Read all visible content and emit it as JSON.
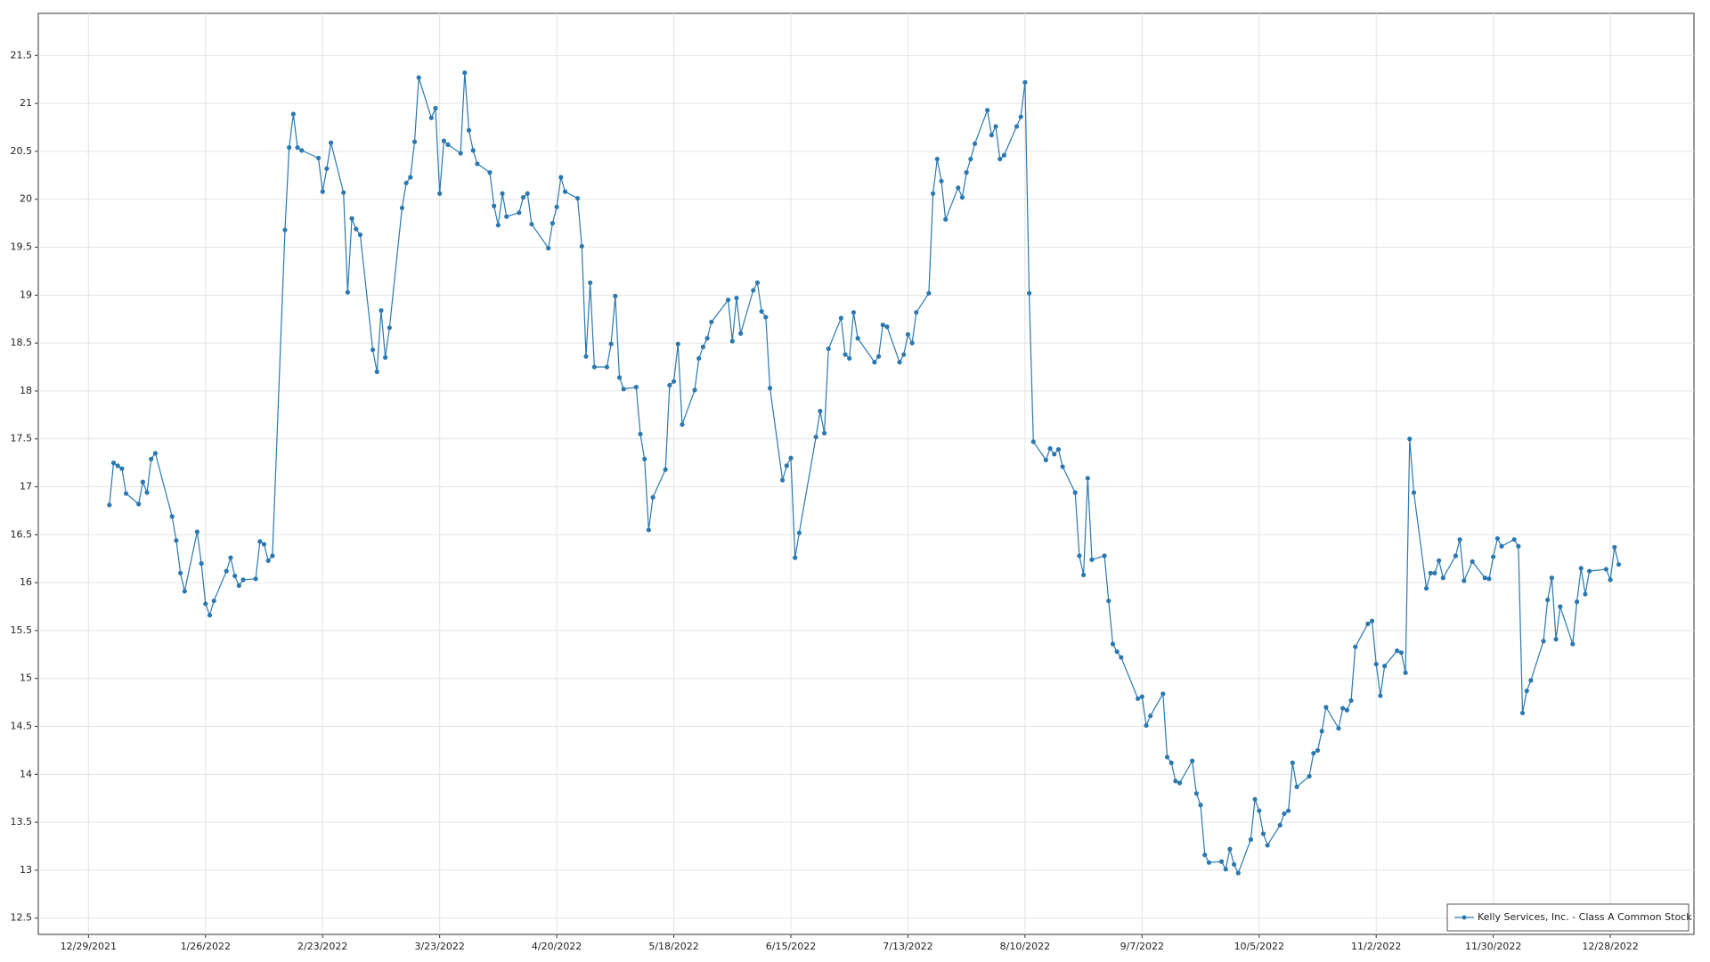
{
  "chart_data": {
    "type": "line",
    "grid": true,
    "legend": "lower right",
    "xlim": [
      "12/17/2021",
      "1/17/2023"
    ],
    "ylim": [
      12.33,
      21.94
    ],
    "xticks": [
      "12/29/2021",
      "1/26/2022",
      "2/23/2022",
      "3/23/2022",
      "4/20/2022",
      "5/18/2022",
      "6/15/2022",
      "7/13/2022",
      "8/10/2022",
      "9/7/2022",
      "10/5/2022",
      "11/2/2022",
      "11/30/2022",
      "12/28/2022"
    ],
    "yticks": [
      12.5,
      13,
      13.5,
      14,
      14.5,
      15,
      15.5,
      16,
      16.5,
      17,
      17.5,
      18,
      18.5,
      19,
      19.5,
      20,
      20.5,
      21,
      21.5
    ],
    "x": [
      "1/3/2022",
      "1/4/2022",
      "1/5/2022",
      "1/6/2022",
      "1/7/2022",
      "1/10/2022",
      "1/11/2022",
      "1/12/2022",
      "1/13/2022",
      "1/14/2022",
      "1/18/2022",
      "1/19/2022",
      "1/20/2022",
      "1/21/2022",
      "1/24/2022",
      "1/25/2022",
      "1/26/2022",
      "1/27/2022",
      "1/28/2022",
      "1/31/2022",
      "2/1/2022",
      "2/2/2022",
      "2/3/2022",
      "2/4/2022",
      "2/7/2022",
      "2/8/2022",
      "2/9/2022",
      "2/10/2022",
      "2/11/2022",
      "2/14/2022",
      "2/15/2022",
      "2/16/2022",
      "2/17/2022",
      "2/18/2022",
      "2/22/2022",
      "2/23/2022",
      "2/24/2022",
      "2/25/2022",
      "2/28/2022",
      "3/1/2022",
      "3/2/2022",
      "3/3/2022",
      "3/4/2022",
      "3/7/2022",
      "3/8/2022",
      "3/9/2022",
      "3/10/2022",
      "3/11/2022",
      "3/14/2022",
      "3/15/2022",
      "3/16/2022",
      "3/17/2022",
      "3/18/2022",
      "3/21/2022",
      "3/22/2022",
      "3/23/2022",
      "3/24/2022",
      "3/25/2022",
      "3/28/2022",
      "3/29/2022",
      "3/30/2022",
      "3/31/2022",
      "4/1/2022",
      "4/4/2022",
      "4/5/2022",
      "4/6/2022",
      "4/7/2022",
      "4/8/2022",
      "4/11/2022",
      "4/12/2022",
      "4/13/2022",
      "4/14/2022",
      "4/18/2022",
      "4/19/2022",
      "4/20/2022",
      "4/21/2022",
      "4/22/2022",
      "4/25/2022",
      "4/26/2022",
      "4/27/2022",
      "4/28/2022",
      "4/29/2022",
      "5/2/2022",
      "5/3/2022",
      "5/4/2022",
      "5/5/2022",
      "5/6/2022",
      "5/9/2022",
      "5/10/2022",
      "5/11/2022",
      "5/12/2022",
      "5/13/2022",
      "5/16/2022",
      "5/17/2022",
      "5/18/2022",
      "5/19/2022",
      "5/20/2022",
      "5/23/2022",
      "5/24/2022",
      "5/25/2022",
      "5/26/2022",
      "5/27/2022",
      "5/31/2022",
      "6/1/2022",
      "6/2/2022",
      "6/3/2022",
      "6/6/2022",
      "6/7/2022",
      "6/8/2022",
      "6/9/2022",
      "6/10/2022",
      "6/13/2022",
      "6/14/2022",
      "6/15/2022",
      "6/16/2022",
      "6/17/2022",
      "6/21/2022",
      "6/22/2022",
      "6/23/2022",
      "6/24/2022",
      "6/27/2022",
      "6/28/2022",
      "6/29/2022",
      "6/30/2022",
      "7/1/2022",
      "7/5/2022",
      "7/6/2022",
      "7/7/2022",
      "7/8/2022",
      "7/11/2022",
      "7/12/2022",
      "7/13/2022",
      "7/14/2022",
      "7/15/2022",
      "7/18/2022",
      "7/19/2022",
      "7/20/2022",
      "7/21/2022",
      "7/22/2022",
      "7/25/2022",
      "7/26/2022",
      "7/27/2022",
      "7/28/2022",
      "7/29/2022",
      "8/1/2022",
      "8/2/2022",
      "8/3/2022",
      "8/4/2022",
      "8/5/2022",
      "8/8/2022",
      "8/9/2022",
      "8/10/2022",
      "8/11/2022",
      "8/12/2022",
      "8/15/2022",
      "8/16/2022",
      "8/17/2022",
      "8/18/2022",
      "8/19/2022",
      "8/22/2022",
      "8/23/2022",
      "8/24/2022",
      "8/25/2022",
      "8/26/2022",
      "8/29/2022",
      "8/30/2022",
      "8/31/2022",
      "9/1/2022",
      "9/2/2022",
      "9/6/2022",
      "9/7/2022",
      "9/8/2022",
      "9/9/2022",
      "9/12/2022",
      "9/13/2022",
      "9/14/2022",
      "9/15/2022",
      "9/16/2022",
      "9/19/2022",
      "9/20/2022",
      "9/21/2022",
      "9/22/2022",
      "9/23/2022",
      "9/26/2022",
      "9/27/2022",
      "9/28/2022",
      "9/29/2022",
      "9/30/2022",
      "10/3/2022",
      "10/4/2022",
      "10/5/2022",
      "10/6/2022",
      "10/7/2022",
      "10/10/2022",
      "10/11/2022",
      "10/12/2022",
      "10/13/2022",
      "10/14/2022",
      "10/17/2022",
      "10/18/2022",
      "10/19/2022",
      "10/20/2022",
      "10/21/2022",
      "10/24/2022",
      "10/25/2022",
      "10/26/2022",
      "10/27/2022",
      "10/28/2022",
      "10/31/2022",
      "11/1/2022",
      "11/2/2022",
      "11/3/2022",
      "11/4/2022",
      "11/7/2022",
      "11/8/2022",
      "11/9/2022",
      "11/10/2022",
      "11/11/2022",
      "11/14/2022",
      "11/15/2022",
      "11/16/2022",
      "11/17/2022",
      "11/18/2022",
      "11/21/2022",
      "11/22/2022",
      "11/23/2022",
      "11/25/2022",
      "11/28/2022",
      "11/29/2022",
      "11/30/2022",
      "12/1/2022",
      "12/2/2022",
      "12/5/2022",
      "12/6/2022",
      "12/7/2022",
      "12/8/2022",
      "12/9/2022",
      "12/12/2022",
      "12/13/2022",
      "12/14/2022",
      "12/15/2022",
      "12/16/2022",
      "12/19/2022",
      "12/20/2022",
      "12/21/2022",
      "12/22/2022",
      "12/23/2022",
      "12/27/2022",
      "12/28/2022",
      "12/29/2022",
      "12/30/2022"
    ],
    "series": [
      {
        "name": "Kelly Services, Inc. - Class A Common Stock",
        "color": "#2b78b0",
        "values": [
          16.81,
          17.25,
          17.22,
          17.19,
          16.93,
          16.82,
          17.05,
          16.94,
          17.29,
          17.35,
          16.69,
          16.44,
          16.1,
          15.91,
          16.53,
          16.2,
          15.78,
          15.66,
          15.81,
          16.12,
          16.26,
          16.07,
          15.97,
          16.03,
          16.04,
          16.43,
          16.4,
          16.23,
          16.28,
          19.68,
          20.54,
          20.89,
          20.54,
          20.51,
          20.43,
          20.08,
          20.32,
          20.59,
          20.07,
          19.03,
          19.8,
          19.69,
          19.63,
          18.43,
          18.2,
          18.84,
          18.35,
          18.66,
          19.91,
          20.17,
          20.23,
          20.6,
          21.27,
          20.85,
          20.95,
          20.06,
          20.61,
          20.57,
          20.48,
          21.32,
          20.72,
          20.51,
          20.37,
          20.28,
          19.93,
          19.73,
          20.06,
          19.82,
          19.86,
          20.02,
          20.06,
          19.74,
          19.49,
          19.75,
          19.92,
          20.23,
          20.08,
          20.01,
          19.51,
          18.36,
          19.13,
          18.25,
          18.25,
          18.49,
          18.99,
          18.14,
          18.02,
          18.04,
          17.55,
          17.29,
          16.55,
          16.89,
          17.18,
          18.06,
          18.1,
          18.49,
          17.65,
          18.01,
          18.34,
          18.46,
          18.55,
          18.72,
          18.95,
          18.52,
          18.97,
          18.6,
          19.05,
          19.13,
          18.83,
          18.77,
          18.03,
          17.07,
          17.22,
          17.3,
          16.26,
          16.52,
          17.52,
          17.79,
          17.56,
          18.44,
          18.76,
          18.38,
          18.34,
          18.82,
          18.55,
          18.3,
          18.36,
          18.69,
          18.67,
          18.3,
          18.38,
          18.59,
          18.5,
          18.82,
          19.02,
          20.06,
          20.42,
          20.19,
          19.79,
          20.12,
          20.02,
          20.28,
          20.42,
          20.58,
          20.93,
          20.67,
          20.76,
          20.42,
          20.46,
          20.76,
          20.86,
          21.22,
          19.02,
          17.47,
          17.28,
          17.4,
          17.34,
          17.39,
          17.21,
          16.94,
          16.28,
          16.08,
          17.09,
          16.24,
          16.28,
          15.81,
          15.36,
          15.28,
          15.22,
          14.79,
          14.81,
          14.51,
          14.61,
          14.84,
          14.18,
          14.12,
          13.93,
          13.91,
          14.14,
          13.8,
          13.68,
          13.16,
          13.08,
          13.09,
          13.01,
          13.22,
          13.06,
          12.97,
          13.32,
          13.74,
          13.62,
          13.38,
          13.26,
          13.47,
          13.59,
          13.62,
          14.12,
          13.87,
          13.98,
          14.22,
          14.25,
          14.45,
          14.7,
          14.48,
          14.69,
          14.67,
          14.77,
          15.33,
          15.57,
          15.6,
          15.15,
          14.82,
          15.13,
          15.29,
          15.27,
          15.06,
          17.5,
          16.94,
          15.94,
          16.1,
          16.1,
          16.23,
          16.05,
          16.28,
          16.45,
          16.02,
          16.22,
          16.05,
          16.04,
          16.27,
          16.46,
          16.38,
          16.45,
          16.38,
          14.64,
          14.87,
          14.98,
          15.39,
          15.82,
          16.05,
          15.41,
          15.75,
          15.36,
          15.8,
          16.15,
          15.88,
          16.12,
          16.14,
          16.03,
          16.37,
          16.19
        ]
      }
    ]
  }
}
